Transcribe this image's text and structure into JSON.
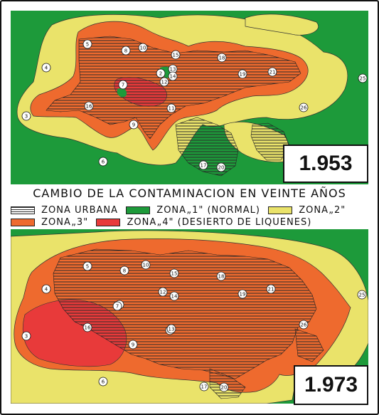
{
  "title": "CAMBIO DE LA CONTAMINACION EN VEINTE AÑOS",
  "legend": [
    {
      "key": "urban",
      "label": "ZONA URBANA",
      "color": "#ffffff",
      "pattern": "horizontal-lines"
    },
    {
      "key": "z1",
      "label": "ZONA„1\" (NORMAL)",
      "color": "#1d9a3a"
    },
    {
      "key": "z2",
      "label": "ZONA„2\"",
      "color": "#eae36a"
    },
    {
      "key": "z3",
      "label": "ZONA„3\"",
      "color": "#ee6a2e"
    },
    {
      "key": "z4",
      "label": "ZONA„4\" (DESIERTO DE LIQUENES)",
      "color": "#e83a3a"
    }
  ],
  "maps": [
    {
      "year": "1.953"
    },
    {
      "year": "1.973"
    }
  ],
  "stations": [
    "2",
    "3",
    "4",
    "5",
    "6",
    "7",
    "8",
    "9",
    "10",
    "11",
    "12",
    "13",
    "14",
    "15",
    "16",
    "17",
    "18",
    "19",
    "20",
    "21",
    "25",
    "26"
  ],
  "colors": {
    "urban_lines": "#333333",
    "urban_land": "#e9d9a0",
    "z1": "#1d9a3a",
    "z2": "#eae36a",
    "z3": "#ee6a2e",
    "z4": "#e83a3a"
  }
}
